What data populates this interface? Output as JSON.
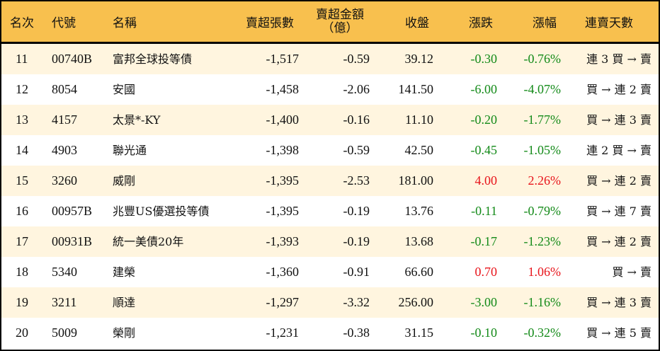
{
  "colors": {
    "header_bg": "#f8c04e",
    "row_alt_bg": "#fff5df",
    "up": "#e8141b",
    "down": "#138a18"
  },
  "header": {
    "rank": "名次",
    "code": "代號",
    "name": "名稱",
    "net_sell_volume": "賣超張數",
    "net_sell_amount_line1": "賣超金額",
    "net_sell_amount_line2": "（億）",
    "close": "收盤",
    "change": "漲跌",
    "change_pct": "漲幅",
    "streak": "連賣天數"
  },
  "rows": [
    {
      "rank": "11",
      "code": "00740B",
      "name": "富邦全球投等債",
      "volume": "-1,517",
      "amount": "-0.59",
      "close": "39.12",
      "change": "-0.30",
      "pct": "-0.76%",
      "dir": "down",
      "streak": "連 3 買 → 賣"
    },
    {
      "rank": "12",
      "code": "8054",
      "name": "安國",
      "volume": "-1,458",
      "amount": "-2.06",
      "close": "141.50",
      "change": "-6.00",
      "pct": "-4.07%",
      "dir": "down",
      "streak": "買 → 連 2 賣"
    },
    {
      "rank": "13",
      "code": "4157",
      "name": "太景*-KY",
      "volume": "-1,400",
      "amount": "-0.16",
      "close": "11.10",
      "change": "-0.20",
      "pct": "-1.77%",
      "dir": "down",
      "streak": "買 → 連 3 賣"
    },
    {
      "rank": "14",
      "code": "4903",
      "name": "聯光通",
      "volume": "-1,398",
      "amount": "-0.59",
      "close": "42.50",
      "change": "-0.45",
      "pct": "-1.05%",
      "dir": "down",
      "streak": "連 2 買 → 賣"
    },
    {
      "rank": "15",
      "code": "3260",
      "name": "威剛",
      "volume": "-1,395",
      "amount": "-2.53",
      "close": "181.00",
      "change": "4.00",
      "pct": "2.26%",
      "dir": "up",
      "streak": "買 → 連 2 賣"
    },
    {
      "rank": "16",
      "code": "00957B",
      "name": "兆豐US優選投等債",
      "volume": "-1,395",
      "amount": "-0.19",
      "close": "13.76",
      "change": "-0.11",
      "pct": "-0.79%",
      "dir": "down",
      "streak": "買 → 連 7 賣"
    },
    {
      "rank": "17",
      "code": "00931B",
      "name": "統一美債20年",
      "volume": "-1,393",
      "amount": "-0.19",
      "close": "13.68",
      "change": "-0.17",
      "pct": "-1.23%",
      "dir": "down",
      "streak": "買 → 連 2 賣"
    },
    {
      "rank": "18",
      "code": "5340",
      "name": "建榮",
      "volume": "-1,360",
      "amount": "-0.91",
      "close": "66.60",
      "change": "0.70",
      "pct": "1.06%",
      "dir": "up",
      "streak": "買 → 賣"
    },
    {
      "rank": "19",
      "code": "3211",
      "name": "順達",
      "volume": "-1,297",
      "amount": "-3.32",
      "close": "256.00",
      "change": "-3.00",
      "pct": "-1.16%",
      "dir": "down",
      "streak": "買 → 連 3 賣"
    },
    {
      "rank": "20",
      "code": "5009",
      "name": "榮剛",
      "volume": "-1,231",
      "amount": "-0.38",
      "close": "31.15",
      "change": "-0.10",
      "pct": "-0.32%",
      "dir": "down",
      "streak": "買 → 連 5 賣"
    }
  ]
}
